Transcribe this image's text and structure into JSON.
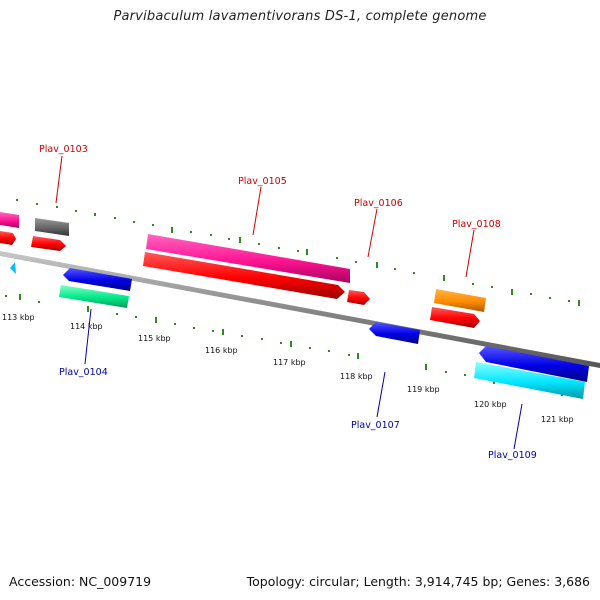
{
  "title": "Parvibaculum lavamentivorans DS-1, complete genome",
  "footer": {
    "accession": "Accession: NC_009719",
    "topology": "Topology: circular; Length: 3,914,745 bp; Genes: 3,686"
  },
  "colors": {
    "backbone": "#8c8c8c",
    "tick": "#2e8b1e",
    "forward_label": "#cc0000",
    "reverse_label": "#0000aa"
  },
  "kbp_labels": [
    "113 kbp",
    "114 kbp",
    "115 kbp",
    "116 kbp",
    "117 kbp",
    "118 kbp",
    "119 kbp",
    "120 kbp",
    "121 kbp"
  ],
  "gene_labels": [
    {
      "text": "Plav_0103",
      "strand": "forward"
    },
    {
      "text": "Plav_0104",
      "strand": "reverse"
    },
    {
      "text": "Plav_0105",
      "strand": "forward"
    },
    {
      "text": "Plav_0106",
      "strand": "forward"
    },
    {
      "text": "Plav_0107",
      "strand": "reverse"
    },
    {
      "text": "Plav_0108",
      "strand": "forward"
    },
    {
      "text": "Plav_0109",
      "strand": "reverse"
    }
  ]
}
